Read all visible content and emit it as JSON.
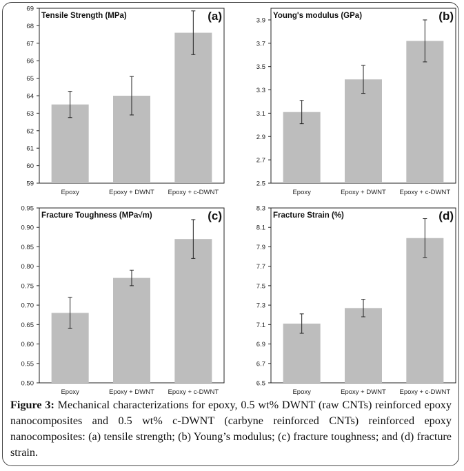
{
  "figure": {
    "caption_label": "Figure 3:",
    "caption_text": " Mechanical characterizations for epoxy, 0.5 wt% DWNT (raw CNTs) reinforced epoxy nanocomposites and 0.5 wt% c-DWNT (carbyne reinforced CNTs) reinforced epoxy nanocomposites: (a) tensile strength; (b) Young’s modulus; (c) fracture toughness; and (d) fracture strain."
  },
  "colors": {
    "bar": "#bdbdbd",
    "axis": "#222222",
    "error": "#222222"
  },
  "chart_data": [
    {
      "type": "bar",
      "title": "Tensile Strength (MPa)",
      "panel_label": "(a)",
      "categories": [
        "Epoxy",
        "Epoxy + DWNT",
        "Epoxy + c-DWNT"
      ],
      "values": [
        63.5,
        64.0,
        67.6
      ],
      "errors": [
        0.75,
        1.1,
        1.25
      ],
      "ylim": [
        59,
        69
      ],
      "yticks": [
        "59",
        "60",
        "61",
        "62",
        "63",
        "64",
        "65",
        "66",
        "67",
        "68",
        "69"
      ],
      "grid": false
    },
    {
      "type": "bar",
      "title": "Young's modulus (GPa)",
      "panel_label": "(b)",
      "categories": [
        "Epoxy",
        "Epoxy + DWNT",
        "Epoxy + c-DWNT"
      ],
      "values": [
        3.11,
        3.39,
        3.72
      ],
      "errors": [
        0.1,
        0.12,
        0.18
      ],
      "ylim": [
        2.5,
        4.0
      ],
      "yticks": [
        "2.5",
        "2.7",
        "2.9",
        "3.1",
        "3.3",
        "3.5",
        "3.7",
        "3.9"
      ],
      "grid": false
    },
    {
      "type": "bar",
      "title": "Fracture Toughness (MPa√m)",
      "panel_label": "(c)",
      "categories": [
        "Epoxy",
        "Epoxy + DWNT",
        "Epoxy + c-DWNT"
      ],
      "values": [
        0.68,
        0.77,
        0.87
      ],
      "errors": [
        0.04,
        0.02,
        0.05
      ],
      "ylim": [
        0.5,
        0.95
      ],
      "yticks": [
        "0.50",
        "0.55",
        "0.60",
        "0.65",
        "0.70",
        "0.75",
        "0.80",
        "0.85",
        "0.90",
        "0.95"
      ],
      "grid": false
    },
    {
      "type": "bar",
      "title": "Fracture Strain (%)",
      "panel_label": "(d)",
      "categories": [
        "Epoxy",
        "Epoxy + DWNT",
        "Epoxy + c-DWNT"
      ],
      "values": [
        7.11,
        7.27,
        7.99
      ],
      "errors": [
        0.1,
        0.09,
        0.2
      ],
      "ylim": [
        6.5,
        8.3
      ],
      "yticks": [
        "6.5",
        "6.7",
        "6.9",
        "7.1",
        "7.3",
        "7.5",
        "7.7",
        "7.9",
        "8.1",
        "8.3"
      ],
      "grid": false
    }
  ]
}
